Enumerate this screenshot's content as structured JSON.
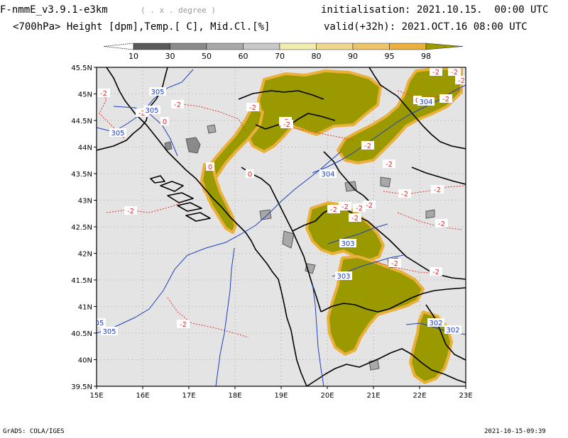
{
  "header": {
    "model_title": "F-nmmE_v3.9.1-e3km",
    "degree_note": "( . x . degree )",
    "field_description": "<700hPa> Height [dpm],Temp.[ C], Mid.Cl.[%]",
    "initialisation": "initialisation: 2021.10.15.  00:00 UTC",
    "valid": "valid(+32h): 2021.OCT.16 08:00 UTC"
  },
  "colorbar": {
    "labels": [
      "10",
      "30",
      "50",
      "60",
      "70",
      "80",
      "90",
      "95",
      "98"
    ],
    "colors": [
      "#ffffff",
      "#5a5a5a",
      "#8a8a8a",
      "#a8a8a8",
      "#c8c8c8",
      "#f3ecb0",
      "#f0d88a",
      "#eec46a",
      "#e9b13c",
      "#9a9a00"
    ]
  },
  "map": {
    "lat_labels": [
      "45.5N",
      "45N",
      "44.5N",
      "44N",
      "43.5N",
      "43N",
      "42.5N",
      "42N",
      "41.5N",
      "41N",
      "40.5N",
      "40N",
      "39.5N"
    ],
    "lon_labels": [
      "15E",
      "16E",
      "17E",
      "18E",
      "19E",
      "20E",
      "21E",
      "22E",
      "23E"
    ],
    "height_contours": [
      {
        "label": "305"
      },
      {
        "label": "305"
      },
      {
        "label": "305"
      },
      {
        "label": "304"
      },
      {
        "label": "304"
      },
      {
        "label": "303"
      },
      {
        "label": "303"
      },
      {
        "label": "302"
      },
      {
        "label": "302"
      },
      {
        "label": "05"
      },
      {
        "label": "305"
      }
    ],
    "temp_labels": [
      "-2",
      "-2",
      "-2",
      "0",
      "-2",
      "-2",
      "-2",
      "0",
      "0",
      "-2",
      "-2",
      "-2",
      "-2",
      "-2",
      "-2",
      "-2",
      "-2",
      "-2",
      "-2",
      "-2",
      "-2",
      "-2",
      "-2",
      "-2",
      "-2",
      "-2",
      "-2",
      "0"
    ],
    "colors": {
      "background": "#e4e4e4",
      "cloud_high": "#9a9a00",
      "cloud_edge": "#e9b13c",
      "height_contour": "#1f3fbf",
      "temp_contour": "#e03030",
      "coast": "#000000"
    }
  },
  "footer": {
    "left": "GrADS: COLA/IGES",
    "right": "2021-10-15-09:39"
  }
}
